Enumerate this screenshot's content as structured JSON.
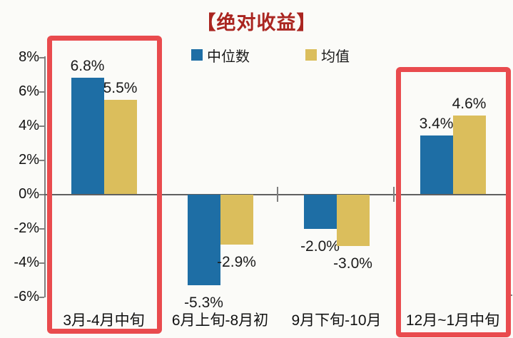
{
  "title": {
    "text": "【绝对收益】",
    "color": "#aa2520"
  },
  "chart_data": {
    "type": "bar",
    "title": "【绝对收益】",
    "categories": [
      "3月-4月中旬",
      "6月上旬-8月初",
      "9月下旬-10月",
      "12月~1月中旬"
    ],
    "series": [
      {
        "name": "中位数",
        "color": "#1e6ea5",
        "values": [
          6.8,
          -5.3,
          -2.0,
          3.4
        ],
        "value_labels": [
          "6.8%",
          "-5.3%",
          "-2.0%",
          "3.4%"
        ]
      },
      {
        "name": "均值",
        "color": "#dbbe5c",
        "values": [
          5.5,
          -2.9,
          -3.0,
          4.6
        ],
        "value_labels": [
          "5.5%",
          "-2.9%",
          "-3.0%",
          "4.6%"
        ]
      }
    ],
    "y_ticks": [
      "8%",
      "6%",
      "4%",
      "2%",
      "0%",
      "-2%",
      "-4%",
      "-6%"
    ],
    "ylim": [
      -6,
      8
    ],
    "grid": false,
    "legend_position": "top",
    "highlighted_categories": [
      0,
      3
    ],
    "highlight_color": "#e94b4e",
    "axis_color": "#7f7f7f",
    "zero_line_color": "#606060",
    "text_color": "#1a1a1a",
    "background_color": "#fbfbf8"
  }
}
